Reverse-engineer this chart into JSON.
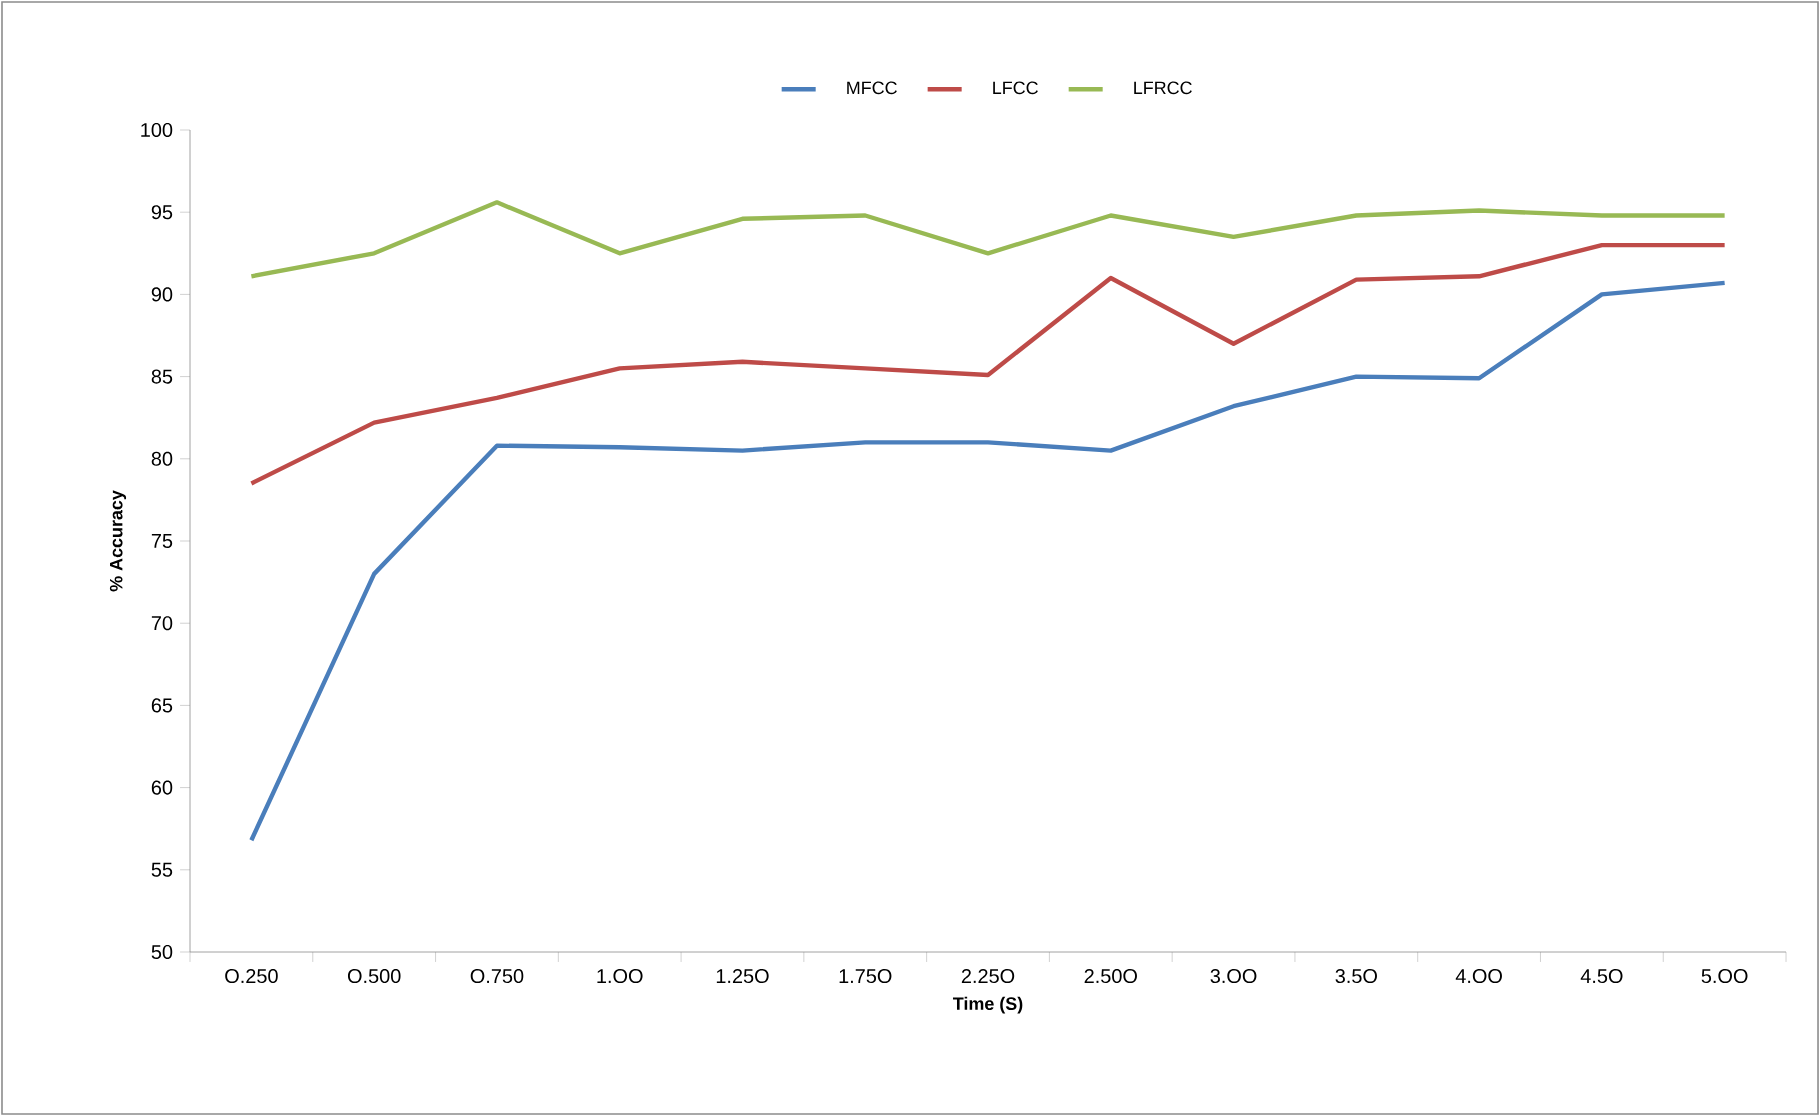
{
  "chart_data": {
    "type": "line",
    "xlabel": "Time (S)",
    "ylabel": "% Accuracy",
    "categories": [
      "O.250",
      "O.500",
      "O.750",
      "1.OO",
      "1.25O",
      "1.75O",
      "2.25O",
      "2.50O",
      "3.OO",
      "3.5O",
      "4.OO",
      "4.5O",
      "5.OO"
    ],
    "series": [
      {
        "name": "MFCC",
        "color": "#4a7ebb",
        "values": [
          56.8,
          73,
          80.8,
          80.7,
          80.5,
          81,
          81,
          80.5,
          83.2,
          85,
          84.9,
          90,
          90.7
        ]
      },
      {
        "name": "LFCC",
        "color": "#be4b48",
        "values": [
          78.5,
          82.2,
          83.7,
          85.5,
          85.9,
          85.5,
          85.1,
          91,
          87,
          90.9,
          91.1,
          93,
          93
        ]
      },
      {
        "name": "LFRCC",
        "color": "#98b954",
        "values": [
          91.1,
          92.5,
          95.6,
          92.5,
          94.6,
          94.8,
          92.5,
          94.8,
          93.5,
          94.8,
          95.1,
          94.8,
          94.8
        ]
      }
    ],
    "ylim": [
      50,
      100
    ],
    "yticks": [
      50,
      55,
      60,
      65,
      70,
      75,
      80,
      85,
      90,
      95,
      100
    ],
    "legend": "top",
    "marker": "none",
    "line_style": "solid"
  }
}
